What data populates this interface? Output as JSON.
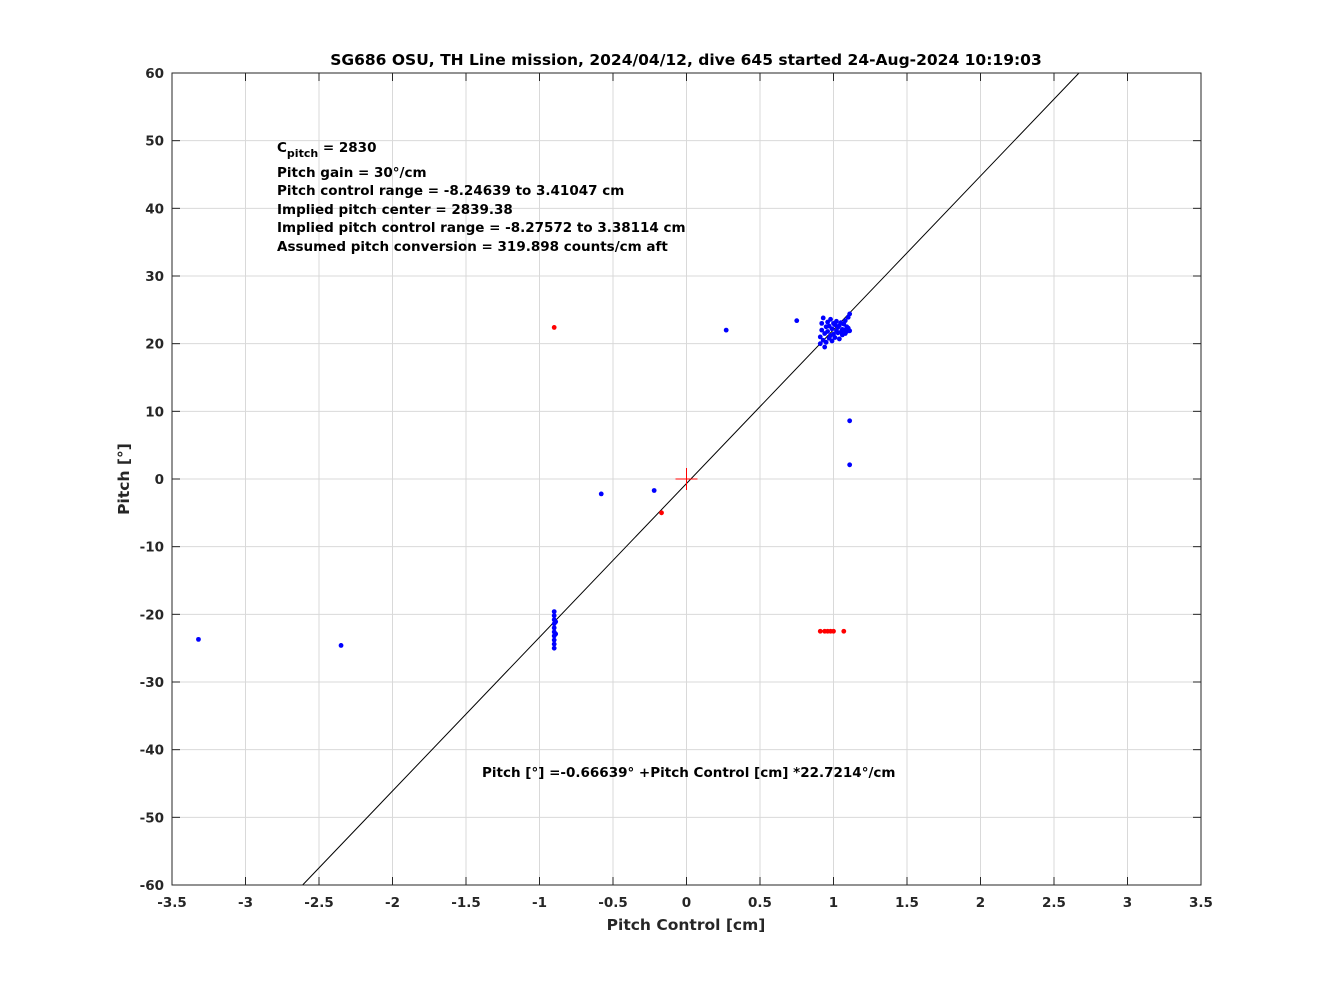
{
  "chart_data": {
    "type": "scatter",
    "title": "SG686 OSU, TH Line mission, 2024/04/12, dive 645 started 24-Aug-2024 10:19:03",
    "xlabel": "Pitch Control [cm]",
    "ylabel": "Pitch [°]",
    "xlim": [
      -3.5,
      3.5
    ],
    "ylim": [
      -60,
      60
    ],
    "grid": true,
    "x_ticks": [
      -3.5,
      -3,
      -2.5,
      -2,
      -1.5,
      -1,
      -0.5,
      0,
      0.5,
      1,
      1.5,
      2,
      2.5,
      3,
      3.5
    ],
    "y_ticks": [
      -60,
      -50,
      -40,
      -30,
      -20,
      -10,
      0,
      10,
      20,
      30,
      40,
      50,
      60
    ],
    "x_tick_labels": [
      "-3.5",
      "-3",
      "-2.5",
      "-2",
      "-1.5",
      "-1",
      "-0.5",
      "0",
      "0.5",
      "1",
      "1.5",
      "2",
      "2.5",
      "3",
      "3.5"
    ],
    "y_tick_labels": [
      "-60",
      "-50",
      "-40",
      "-30",
      "-20",
      "-10",
      "0",
      "10",
      "20",
      "30",
      "40",
      "50",
      "60"
    ],
    "annotations": {
      "cpitch_main": "C",
      "cpitch_sub": "pitch",
      "cpitch_value": " = 2830",
      "lines": [
        "Pitch gain = 30°/cm",
        "Pitch control range = -8.24639 to 3.41047 cm",
        "Implied pitch center = 2839.38",
        "Implied pitch control range = -8.27572 to 3.38114 cm",
        "Assumed pitch conversion = 319.898 counts/cm aft"
      ],
      "fit_equation": "Pitch [°] =-0.66639° +Pitch Control [cm] *22.7214°/cm"
    },
    "fit_line": {
      "intercept": -0.66639,
      "slope": 22.7214,
      "color": "#000000"
    },
    "center_marker": {
      "x": 0,
      "y": 0,
      "color": "#ff0000"
    },
    "series": [
      {
        "color": "#0000ff",
        "points": [
          [
            -3.32,
            -23.7
          ],
          [
            -2.35,
            -24.6
          ],
          [
            -0.58,
            -2.2
          ],
          [
            -0.22,
            -1.7
          ],
          [
            0.27,
            22.0
          ],
          [
            0.75,
            23.4
          ],
          [
            1.11,
            8.6
          ],
          [
            1.11,
            2.1
          ],
          [
            -0.9,
            -19.6
          ],
          [
            -0.9,
            -20.2
          ],
          [
            -0.9,
            -20.8
          ],
          [
            -0.9,
            -21.4
          ],
          [
            -0.9,
            -22.0
          ],
          [
            -0.9,
            -22.6
          ],
          [
            -0.9,
            -23.2
          ],
          [
            -0.9,
            -23.8
          ],
          [
            -0.9,
            -24.4
          ],
          [
            -0.9,
            -25.0
          ],
          [
            -0.89,
            -21.1
          ],
          [
            -0.89,
            -22.9
          ],
          [
            0.91,
            20.0
          ],
          [
            0.91,
            21.0
          ],
          [
            0.92,
            22.0
          ],
          [
            0.92,
            23.0
          ],
          [
            0.93,
            23.8
          ],
          [
            0.93,
            20.5
          ],
          [
            0.94,
            19.5
          ],
          [
            0.94,
            21.5
          ],
          [
            0.95,
            22.5
          ],
          [
            0.95,
            20.2
          ],
          [
            0.96,
            21.8
          ],
          [
            0.96,
            23.2
          ],
          [
            0.97,
            20.8
          ],
          [
            0.97,
            22.6
          ],
          [
            0.98,
            23.6
          ],
          [
            0.98,
            21.2
          ],
          [
            0.99,
            20.4
          ],
          [
            0.99,
            22.2
          ],
          [
            1.0,
            23.0
          ],
          [
            1.0,
            21.4
          ],
          [
            1.01,
            22.8
          ],
          [
            1.01,
            20.9
          ],
          [
            1.02,
            21.9
          ],
          [
            1.02,
            23.3
          ],
          [
            1.03,
            22.4
          ],
          [
            1.03,
            21.6
          ],
          [
            1.04,
            22.7
          ],
          [
            1.04,
            20.7
          ],
          [
            1.05,
            21.7
          ],
          [
            1.05,
            23.1
          ],
          [
            1.06,
            22.1
          ],
          [
            1.06,
            21.3
          ],
          [
            1.07,
            22.9
          ],
          [
            1.07,
            22.0
          ],
          [
            1.08,
            21.5
          ],
          [
            1.08,
            23.4
          ],
          [
            1.09,
            22.5
          ],
          [
            1.09,
            21.8
          ],
          [
            1.1,
            23.9
          ],
          [
            1.1,
            22.3
          ],
          [
            1.11,
            24.4
          ],
          [
            1.11,
            21.9
          ]
        ]
      },
      {
        "color": "#ff0000",
        "points": [
          [
            -0.9,
            22.4
          ],
          [
            -0.17,
            -5.0
          ],
          [
            0.91,
            -22.5
          ],
          [
            0.94,
            -22.5
          ],
          [
            0.96,
            -22.5
          ],
          [
            0.98,
            -22.5
          ],
          [
            1.0,
            -22.5
          ],
          [
            1.07,
            -22.5
          ]
        ]
      }
    ]
  }
}
